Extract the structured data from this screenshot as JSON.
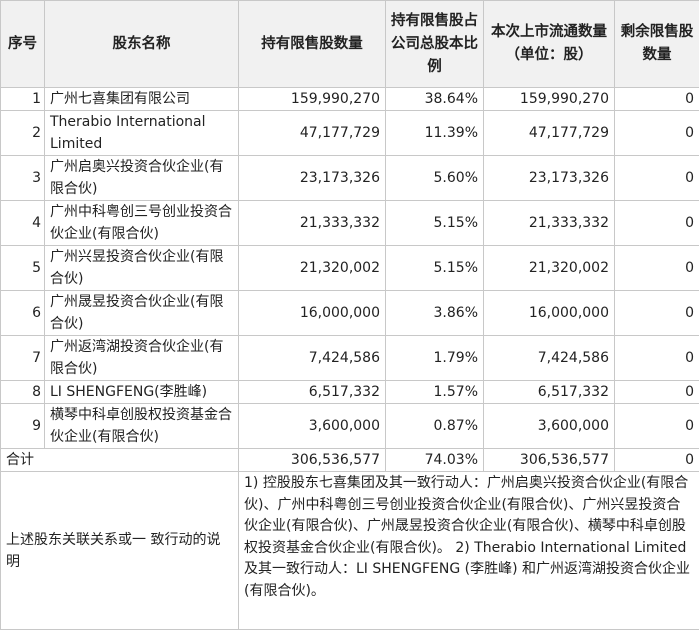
{
  "header": {
    "seq": "序号",
    "name": "股东名称",
    "restricted_shares": "持有限售股数量",
    "ratio": "持有限售股占公司总股本比例",
    "listed_shares": "本次上市流通数量（单位：股）",
    "remaining": "剩余限售股数量"
  },
  "rows": [
    {
      "seq": "1",
      "name": "广州七喜集团有限公司",
      "restricted": "159,990,270",
      "ratio": "38.64%",
      "listed": "159,990,270",
      "remaining": "0"
    },
    {
      "seq": "2",
      "name": "Therabio International Limited",
      "restricted": "47,177,729",
      "ratio": "11.39%",
      "listed": "47,177,729",
      "remaining": "0"
    },
    {
      "seq": "3",
      "name": "广州启奥兴投资合伙企业(有限合伙)",
      "restricted": "23,173,326",
      "ratio": "5.60%",
      "listed": "23,173,326",
      "remaining": "0"
    },
    {
      "seq": "4",
      "name": "广州中科粤创三号创业投资合伙企业(有限合伙)",
      "restricted": "21,333,332",
      "ratio": "5.15%",
      "listed": "21,333,332",
      "remaining": "0"
    },
    {
      "seq": "5",
      "name": "广州兴昱投资合伙企业(有限合伙)",
      "restricted": "21,320,002",
      "ratio": "5.15%",
      "listed": "21,320,002",
      "remaining": "0"
    },
    {
      "seq": "6",
      "name": "广州晟昱投资合伙企业(有限合伙)",
      "restricted": "16,000,000",
      "ratio": "3.86%",
      "listed": "16,000,000",
      "remaining": "0"
    },
    {
      "seq": "7",
      "name": "广州返湾湖投资合伙企业(有限合伙)",
      "restricted": "7,424,586",
      "ratio": "1.79%",
      "listed": "7,424,586",
      "remaining": "0"
    },
    {
      "seq": "8",
      "name": "LI SHENGFENG(李胜峰)",
      "restricted": "6,517,332",
      "ratio": "1.57%",
      "listed": "6,517,332",
      "remaining": "0"
    },
    {
      "seq": "9",
      "name": "横琴中科卓创股权投资基金合伙企业(有限合伙)",
      "restricted": "3,600,000",
      "ratio": "0.87%",
      "listed": "3,600,000",
      "remaining": "0"
    }
  ],
  "total": {
    "label": "合计",
    "restricted": "306,536,577",
    "ratio": "74.03%",
    "listed": "306,536,577",
    "remaining": "0"
  },
  "note": {
    "label": "上述股东关联关系或一 致行动的说明",
    "text": "1) 控股股东七喜集团及其一致行动人：广州启奥兴投资合伙企业(有限合伙)、广州中科粤创三号创业投资合伙企业(有限合伙)、广州兴昱投资合伙企业(有限合伙)、广州晟昱投资合伙企业(有限合伙)、横琴中科卓创股权投资基金合伙企业(有限合伙)。 2) Therabio International Limited及其一致行动人：LI SHENGFENG (李胜峰) 和广州返湾湖投资合伙企业(有限合伙)。"
  }
}
